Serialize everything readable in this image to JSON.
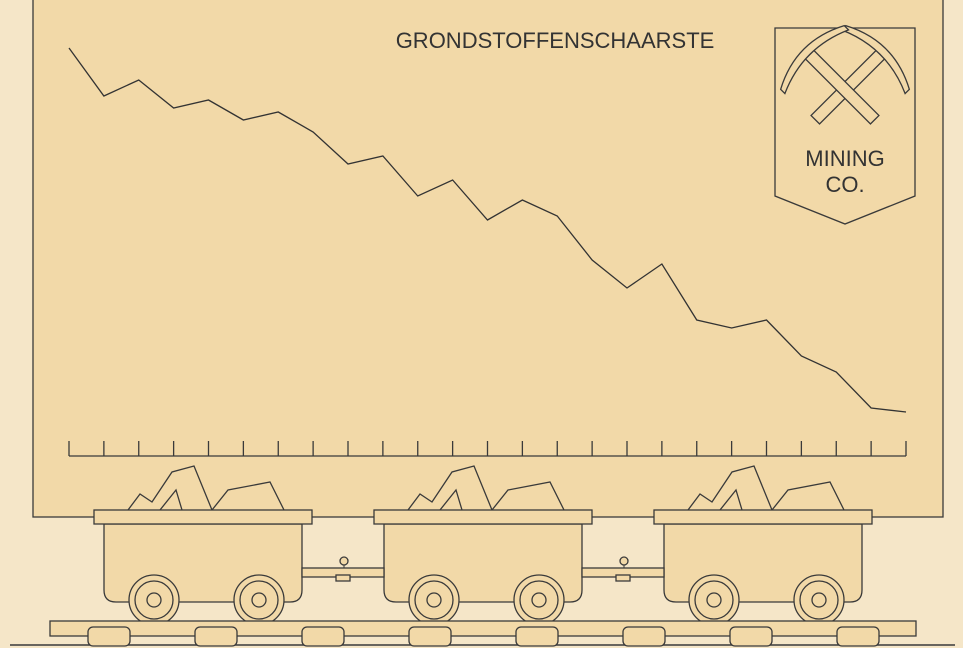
{
  "chart_data": {
    "type": "line",
    "title": "GRONDSTOFFENSCHAARSTE",
    "categories": [
      null,
      null,
      null,
      null,
      null,
      null,
      null,
      null,
      null,
      null,
      null,
      null,
      null,
      null,
      null,
      null,
      null,
      null,
      null,
      null,
      null,
      null,
      null,
      null,
      null
    ],
    "values": [
      98,
      86,
      90,
      83,
      85,
      80,
      82,
      77,
      69,
      71,
      61,
      65,
      55,
      60,
      56,
      45,
      38,
      44,
      30,
      28,
      30,
      21,
      17,
      8,
      7
    ],
    "color": "#333333",
    "ylim": [
      0,
      100
    ]
  },
  "logo_text": [
    "MINING",
    "CO."
  ]
}
